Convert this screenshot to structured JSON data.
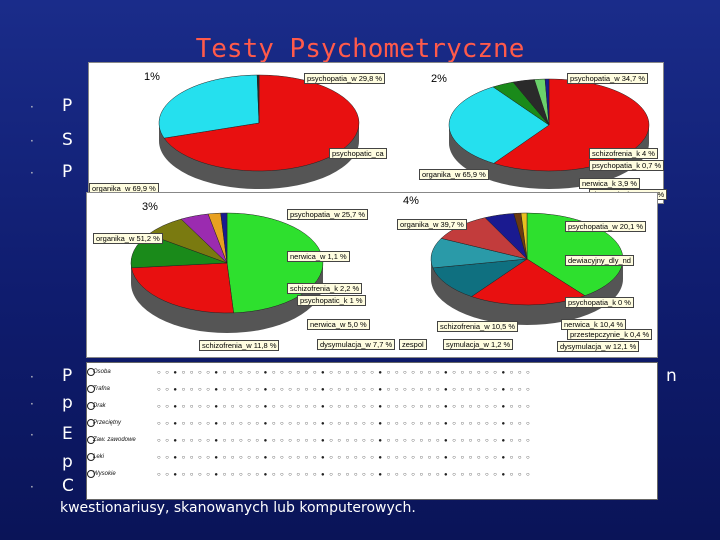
{
  "slide": {
    "title": "Testy Psychometryczne",
    "bottom_text": "kwestionariusy, skanowanych lub komputerowych."
  },
  "bullets_top": [
    "P",
    "S",
    "P"
  ],
  "bullets_bottom": [
    "P",
    "p",
    "E",
    "p",
    "C"
  ],
  "bullet_end_fragment": "n",
  "panel1": {
    "label_left": "1%",
    "label_right": "2%",
    "callouts_left": [
      "psychopatia_w 29,8 %",
      "organika_w 69,9 %",
      "psychopatic_ca"
    ],
    "callouts_right": [
      "psychopatia_w 34,7 %",
      "organika_w 65,9 %",
      "schizofrenia_k 4 %",
      "psychopatia_k 0,7 %",
      "nerwica_k 3,9 %",
      "dysymulacja_w 1,9 %"
    ],
    "slices_left": [
      {
        "value": 69.9,
        "color": "#e81010"
      },
      {
        "value": 29.8,
        "color": "#25e0ee"
      },
      {
        "value": 0.3,
        "color": "#2a2a2a"
      }
    ],
    "slices_right": [
      {
        "value": 65.9,
        "color": "#e81010"
      },
      {
        "value": 34.7,
        "color": "#25e0ee"
      },
      {
        "value": 4.0,
        "color": "#1a8a1a"
      },
      {
        "value": 3.9,
        "color": "#2a2a2a"
      },
      {
        "value": 1.9,
        "color": "#6bd16b"
      },
      {
        "value": 0.7,
        "color": "#1a1a90"
      }
    ]
  },
  "panel2": {
    "label_left": "3%",
    "label_right": "4%",
    "callouts_left": [
      "psychopatia_w 25,7 %",
      "organika_w 51,2 %",
      "nerwica_w 1,1 %",
      "schizofrenia_k 2,2 %",
      "psychopatic_k 1 %",
      "nerwica_w 5,0 %",
      "schizofrenia_w 11,8 %",
      "dysymulacja_w 7,7 %"
    ],
    "callouts_right": [
      "organika_w 39,7 %",
      "psychopatia_w 20,1 %",
      "dewiacyjny_dly_nd",
      "psychopatia_k 0 %",
      "nerwica_k 10,4 %",
      "przestepczynie_k 0,4 %",
      "schizofrenia_w 10,5 %",
      "zespol",
      "symulacja_w 1,2 %",
      "dysymulacja_w 12,1 %"
    ],
    "slices_left": [
      {
        "value": 51.2,
        "color": "#2ee02e"
      },
      {
        "value": 25.7,
        "color": "#e81010"
      },
      {
        "value": 11.8,
        "color": "#1a8a1a"
      },
      {
        "value": 7.7,
        "color": "#7a7a10"
      },
      {
        "value": 5.0,
        "color": "#9b2bb0"
      },
      {
        "value": 2.2,
        "color": "#e8a020"
      },
      {
        "value": 1.1,
        "color": "#1a1a90"
      }
    ],
    "slices_right": [
      {
        "value": 39.7,
        "color": "#2ee02e"
      },
      {
        "value": 20.1,
        "color": "#e81010"
      },
      {
        "value": 12.1,
        "color": "#0f7080"
      },
      {
        "value": 10.5,
        "color": "#2a9aa8"
      },
      {
        "value": 10.4,
        "color": "#c23c3c"
      },
      {
        "value": 5.0,
        "color": "#1a1a90"
      },
      {
        "value": 1.2,
        "color": "#6b3a10"
      },
      {
        "value": 1.0,
        "color": "#e8c020"
      }
    ]
  },
  "form": {
    "rows": [
      "Osoba",
      "Trafna",
      "Drak",
      "Przeciętny",
      "Zaw. zawodowe",
      "Leki",
      "Wysokie"
    ]
  }
}
